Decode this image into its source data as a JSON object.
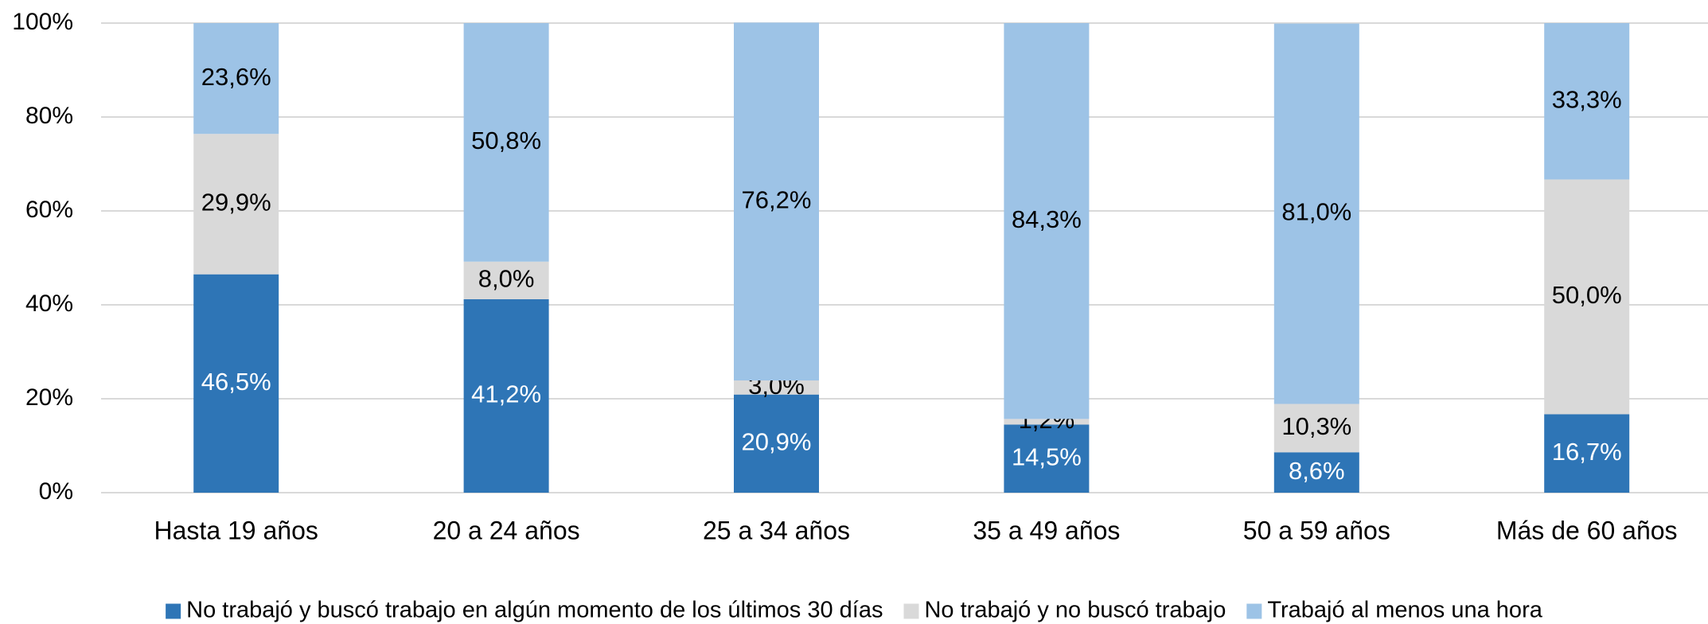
{
  "chart_data": {
    "type": "stacked_bar",
    "categories": [
      "Hasta 19 años",
      "20 a 24 años",
      "25 a 34 años",
      "35 a 49 años",
      "50 a 59 años",
      "Más de 60 años"
    ],
    "series": [
      {
        "name": "No trabajó y buscó trabajo en algún momento de los últimos 30 días",
        "color": "#2e75b6",
        "label_color": "#ffffff",
        "values": [
          46.5,
          41.2,
          20.9,
          14.5,
          8.6,
          16.7
        ],
        "value_labels": [
          "46,5%",
          "41,2%",
          "20,9%",
          "14,5%",
          "8,6%",
          "16,7%"
        ]
      },
      {
        "name": "No trabajó y no buscó trabajo",
        "color": "#d9d9d9",
        "label_color": "#000000",
        "values": [
          29.9,
          8.0,
          3.0,
          1.2,
          10.3,
          50.0
        ],
        "value_labels": [
          "29,9%",
          "8,0%",
          "3,0%",
          "1,2%",
          "10,3%",
          "50,0%"
        ]
      },
      {
        "name": "Trabajó al menos una hora",
        "color": "#9dc3e6",
        "label_color": "#000000",
        "values": [
          23.6,
          50.8,
          76.2,
          84.3,
          81.0,
          33.3
        ],
        "value_labels": [
          "23,6%",
          "50,8%",
          "76,2%",
          "84,3%",
          "81,0%",
          "33,3%"
        ]
      }
    ],
    "ylim": [
      0,
      100
    ],
    "yticks": [
      {
        "value": 0,
        "label": "0%"
      },
      {
        "value": 20,
        "label": "20%"
      },
      {
        "value": 40,
        "label": "40%"
      },
      {
        "value": 60,
        "label": "60%"
      },
      {
        "value": 80,
        "label": "80%"
      },
      {
        "value": 100,
        "label": "100%"
      }
    ],
    "grid": true,
    "legend": "bottom"
  }
}
